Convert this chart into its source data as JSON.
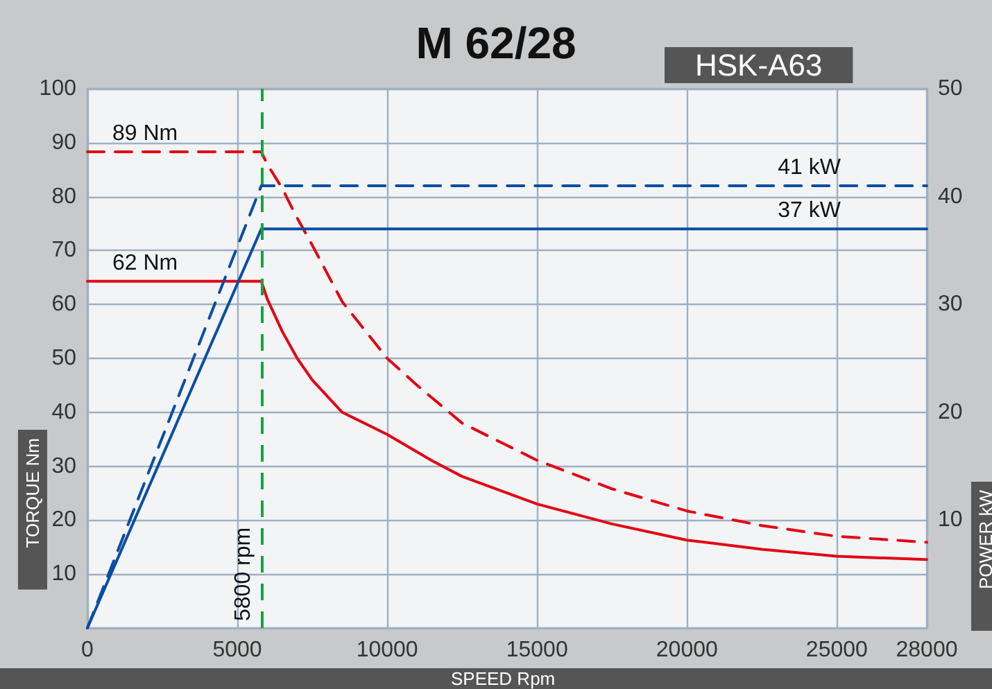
{
  "chart_data": {
    "type": "line",
    "title": "M 62/28",
    "subtitle": "HSK-A63",
    "xlabel": "SPEED Rpm",
    "ylabel": "TORQUE Nm",
    "y2label": "POWER kW",
    "xlim": [
      0,
      28000
    ],
    "xticks": [
      0,
      5000,
      10000,
      15000,
      20000,
      25000,
      28000
    ],
    "ylim": [
      0,
      100
    ],
    "yticks": [
      10,
      20,
      30,
      40,
      50,
      60,
      70,
      80,
      90,
      100
    ],
    "y2lim": [
      0,
      50
    ],
    "y2ticks": [
      10,
      20,
      30,
      40,
      50
    ],
    "grid": true,
    "legend": false,
    "series": [
      {
        "name": "89 Nm",
        "color": "#e30613",
        "line_style": "dashed",
        "x": [
          0,
          5800,
          6000,
          6500,
          7000,
          7500,
          8500,
          10000,
          11000,
          12500,
          15000,
          17500,
          20000,
          22500,
          25000,
          28000
        ],
        "values": [
          88.3,
          88.3,
          86,
          81.5,
          76,
          71,
          60.5,
          50,
          45,
          38,
          31.1,
          25.8,
          21.7,
          19,
          17,
          15.9
        ]
      },
      {
        "name": "62 Nm",
        "color": "#e30613",
        "line_style": "solid",
        "x": [
          0,
          5800,
          6000,
          6500,
          7000,
          7500,
          8500,
          10000,
          11500,
          12500,
          15000,
          17500,
          20000,
          22500,
          25000,
          28000
        ],
        "values": [
          64.3,
          64.3,
          61,
          55,
          50,
          46,
          40,
          35.9,
          31,
          28.1,
          23,
          19.3,
          16.3,
          14.6,
          13.3,
          12.7
        ]
      },
      {
        "name": "41 kW",
        "color": "#0b4ea2",
        "line_style": "dashed",
        "axis": "y2",
        "x": [
          0,
          5800,
          28000
        ],
        "values": [
          0,
          41,
          41
        ]
      },
      {
        "name": "37 kW",
        "color": "#0b4ea2",
        "line_style": "solid",
        "axis": "y2",
        "x": [
          0,
          5800,
          28000
        ],
        "values": [
          0,
          37,
          37
        ]
      }
    ],
    "ref_lines": [
      {
        "axis": "x",
        "value": 5800,
        "label": "5800 rpm",
        "color": "#1aa040",
        "line_style": "dashed"
      }
    ]
  }
}
